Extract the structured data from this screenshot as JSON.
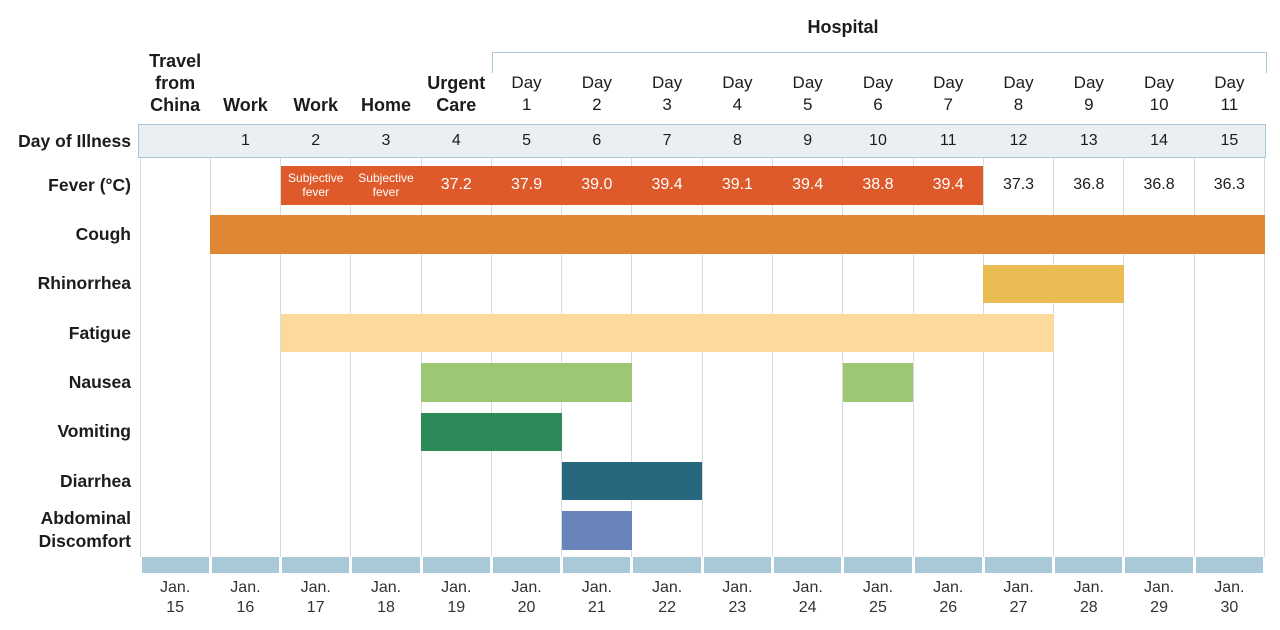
{
  "chart_data": {
    "type": "bar",
    "xlim": [
      0,
      15
    ],
    "hospital_group": {
      "label": "Hospital",
      "from_day": 5,
      "to_day": 15
    },
    "day_of_illness_label": "Day of Illness",
    "columns": [
      {
        "header": "Travel from China",
        "header_num": "",
        "day_of_illness": "",
        "month": "Jan.",
        "date": "15"
      },
      {
        "header": "Work",
        "header_num": "",
        "day_of_illness": "1",
        "month": "Jan.",
        "date": "16"
      },
      {
        "header": "Work",
        "header_num": "",
        "day_of_illness": "2",
        "month": "Jan.",
        "date": "17"
      },
      {
        "header": "Home",
        "header_num": "",
        "day_of_illness": "3",
        "month": "Jan.",
        "date": "18"
      },
      {
        "header": "Urgent Care",
        "header_num": "",
        "day_of_illness": "4",
        "month": "Jan.",
        "date": "19"
      },
      {
        "header": "Day",
        "header_num": "1",
        "day_of_illness": "5",
        "month": "Jan.",
        "date": "20"
      },
      {
        "header": "Day",
        "header_num": "2",
        "day_of_illness": "6",
        "month": "Jan.",
        "date": "21"
      },
      {
        "header": "Day",
        "header_num": "3",
        "day_of_illness": "7",
        "month": "Jan.",
        "date": "22"
      },
      {
        "header": "Day",
        "header_num": "4",
        "day_of_illness": "8",
        "month": "Jan.",
        "date": "23"
      },
      {
        "header": "Day",
        "header_num": "5",
        "day_of_illness": "9",
        "month": "Jan.",
        "date": "24"
      },
      {
        "header": "Day",
        "header_num": "6",
        "day_of_illness": "10",
        "month": "Jan.",
        "date": "25"
      },
      {
        "header": "Day",
        "header_num": "7",
        "day_of_illness": "11",
        "month": "Jan.",
        "date": "26"
      },
      {
        "header": "Day",
        "header_num": "8",
        "day_of_illness": "12",
        "month": "Jan.",
        "date": "27"
      },
      {
        "header": "Day",
        "header_num": "9",
        "day_of_illness": "13",
        "month": "Jan.",
        "date": "28"
      },
      {
        "header": "Day",
        "header_num": "10",
        "day_of_illness": "14",
        "month": "Jan.",
        "date": "29"
      },
      {
        "header": "Day",
        "header_num": "11",
        "day_of_illness": "15",
        "month": "Jan.",
        "date": "30"
      }
    ],
    "series": [
      {
        "name": "Fever (°C)",
        "color": "#de5a2b",
        "ranges": [
          [
            2,
            11
          ]
        ],
        "values": [
          "",
          "",
          "Subjective fever",
          "Subjective fever",
          "37.2",
          "37.9",
          "39.0",
          "39.4",
          "39.1",
          "39.4",
          "38.8",
          "39.4",
          "37.3",
          "36.8",
          "36.8",
          "36.3"
        ]
      },
      {
        "name": "Cough",
        "color": "#e08733",
        "ranges": [
          [
            1,
            15
          ]
        ]
      },
      {
        "name": "Rhinorrhea",
        "color": "#ecbc54",
        "ranges": [
          [
            12,
            13
          ]
        ]
      },
      {
        "name": "Fatigue",
        "color": "#fdd99c",
        "ranges": [
          [
            2,
            12
          ]
        ]
      },
      {
        "name": "Nausea",
        "color": "#9ec774",
        "ranges": [
          [
            4,
            6
          ],
          [
            10,
            10
          ]
        ]
      },
      {
        "name": "Vomiting",
        "color": "#2c8b59",
        "ranges": [
          [
            4,
            5
          ]
        ]
      },
      {
        "name": "Diarrhea",
        "color": "#27687f",
        "ranges": [
          [
            6,
            7
          ]
        ]
      },
      {
        "name": "Abdominal Discomfort",
        "color": "#6884bb",
        "ranges": [
          [
            6,
            6
          ]
        ]
      }
    ]
  },
  "colors": {
    "text": "#1c1c1c",
    "text_on_bar": "#ffffff",
    "date_text": "#333333",
    "grid": "#d7dcdf",
    "band_fill": "#e9eff3",
    "band_border": "#a9c7d6",
    "date_band": "#a9c8d8"
  }
}
